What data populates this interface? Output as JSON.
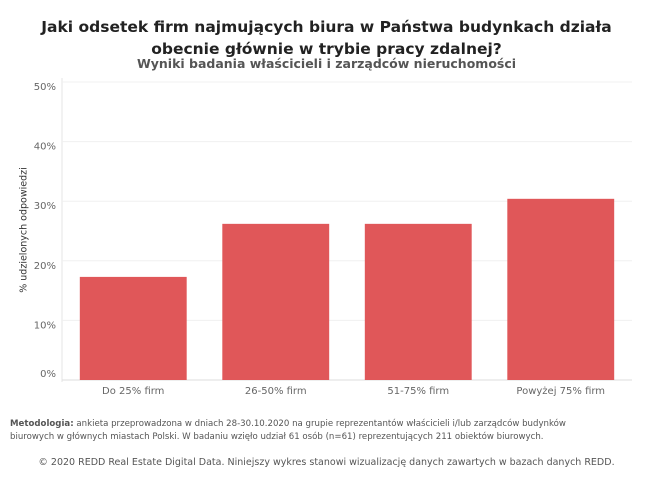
{
  "chart_data": {
    "type": "bar",
    "title": "Jaki odsetek firm najmujących biura w Państwa budynkach działa obecnie głównie w trybie pracy zdalnej?",
    "subtitle": "Wyniki badania właścicieli i zarządców nieruchomości",
    "y_label": "% udzielonych odpowiedzi",
    "categories": [
      "Do 25% firm",
      "26-50% firm",
      "51-75% firm",
      "Powyżej 75% firm"
    ],
    "values": [
      17.3,
      26.2,
      26.2,
      30.4
    ],
    "color": "#e05759",
    "ylim": [
      0,
      50
    ],
    "yticks": [
      {
        "value": 0,
        "label": "0%"
      },
      {
        "value": 10,
        "label": "10%"
      },
      {
        "value": 20,
        "label": "20%"
      },
      {
        "value": 30,
        "label": "30%"
      },
      {
        "value": 40,
        "label": "40%"
      },
      {
        "value": 50,
        "label": "50%"
      }
    ],
    "grid": true,
    "methodology_label": "Metodologia:",
    "methodology": "ankieta przeprowadzona w dniach 28-30.10.2020 na grupie reprezentantów właścicieli i/lub zarządców budynków biurowych w głównych miastach Polski. W badaniu wzięło udział 61 osób (n=61) reprezentujących 211 obiektów biurowych.",
    "copyright": "© 2020 REDD Real Estate Digital Data. Niniejszy wykres stanowi wizualizację danych zawartych w bazach danych REDD."
  }
}
